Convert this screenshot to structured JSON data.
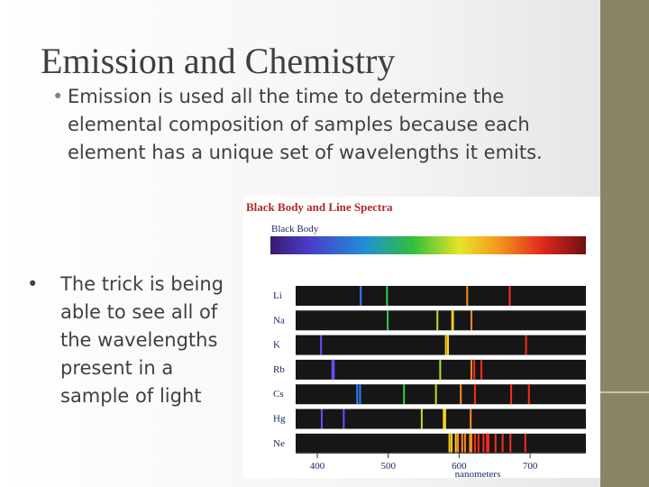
{
  "slide": {
    "title": "Emission and Chemistry",
    "bullets": [
      "Emission is used all the time to determine the elemental composition of samples because each element has a unique set of wavelengths it emits.",
      "The trick is being able to see all of the wavelengths present in a sample of light"
    ],
    "figure": {
      "title": "Black Body and Line Spectra",
      "black_body_label": "Black Body",
      "elements": [
        "Li",
        "Na",
        "K",
        "Rb",
        "Cs",
        "Hg",
        "Ne"
      ],
      "axis_ticks": [
        400,
        500,
        600,
        700
      ],
      "axis_label": "nanometers"
    }
  }
}
